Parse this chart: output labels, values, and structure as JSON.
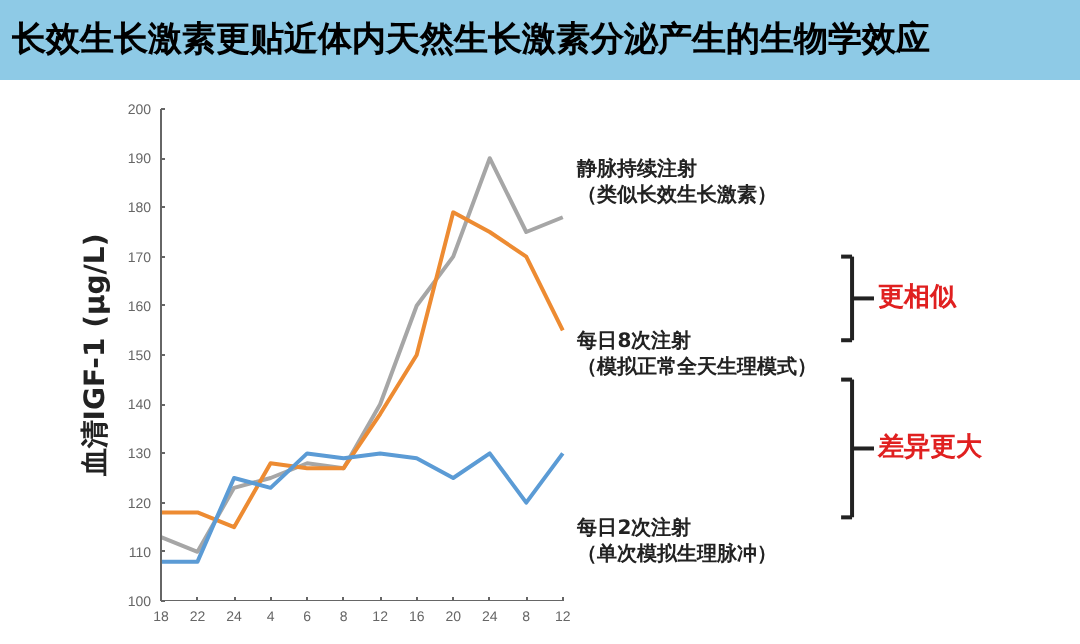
{
  "chart_data": {
    "type": "line",
    "title": "长效生长激素更贴近体内天然生长激素分泌产生的生物学效应",
    "ylabel": "血清IGF-1 (μg/L)",
    "categories": [
      "18",
      "22",
      "24",
      "4",
      "6",
      "8",
      "12",
      "16",
      "20",
      "24",
      "8",
      "12"
    ],
    "series": [
      {
        "name": "静脉持续注射（类似长效生长激素）",
        "color": "#a6a6a6",
        "values": [
          113,
          110,
          123,
          125,
          128,
          127,
          140,
          160,
          170,
          190,
          175,
          178
        ]
      },
      {
        "name": "每日8次注射（模拟正常全天生理模式）",
        "color": "#ed8b32",
        "values": [
          118,
          118,
          115,
          128,
          127,
          127,
          138,
          150,
          179,
          175,
          170,
          155
        ]
      },
      {
        "name": "每日2次注射（单次模拟生理脉冲）",
        "color": "#5b9bd5",
        "values": [
          108,
          108,
          125,
          123,
          130,
          129,
          130,
          129,
          125,
          130,
          120,
          130
        ]
      }
    ],
    "ylim": [
      100,
      200
    ],
    "yticks": [
      100,
      110,
      120,
      130,
      140,
      150,
      160,
      170,
      180,
      190,
      200
    ],
    "annotations": [
      "更相似",
      "差异更大"
    ],
    "grid": false,
    "legend": false,
    "marker": "none",
    "line_style": "solid"
  }
}
